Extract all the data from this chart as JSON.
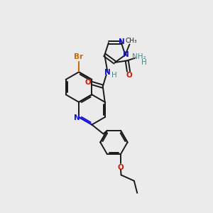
{
  "bg_color": "#ebebeb",
  "bond_color": "#1a1a1a",
  "n_color": "#1414cc",
  "o_color": "#cc1800",
  "br_color": "#cc6600",
  "teal_color": "#4a8888",
  "figsize": [
    3.0,
    3.0
  ],
  "dpi": 100,
  "xlim": [
    0,
    10
  ],
  "ylim": [
    0,
    10
  ]
}
